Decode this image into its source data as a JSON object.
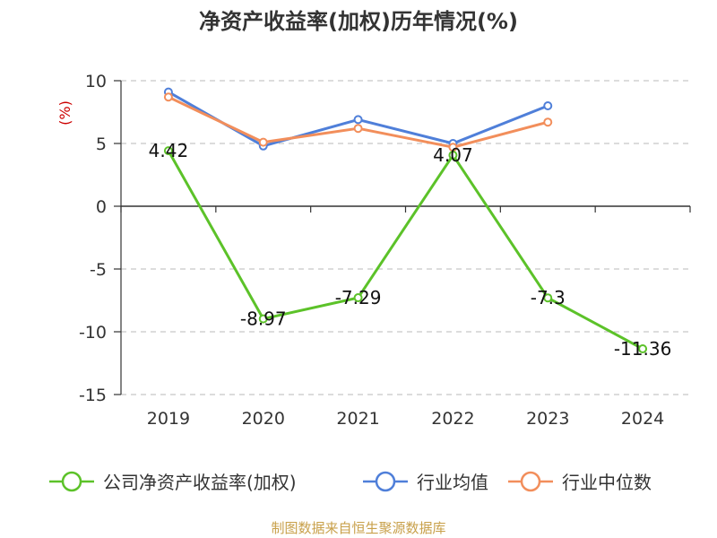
{
  "chart_data": {
    "type": "line",
    "title": "净资产收益率(加权)历年情况(%)",
    "ylabel": "(%)",
    "ylim": [
      -15,
      10
    ],
    "yticks": [
      10,
      5,
      0,
      -5,
      -10,
      -15
    ],
    "categories": [
      "2019",
      "2020",
      "2021",
      "2022",
      "2023",
      "2024"
    ],
    "grid": true,
    "legend_position": "bottom",
    "series": [
      {
        "name": "公司净资产收益率(加权)",
        "color": "#5cc229",
        "values": [
          4.42,
          -8.97,
          -7.29,
          4.07,
          -7.3,
          -11.36
        ],
        "labels": [
          "4.42",
          "-8.97",
          "-7.29",
          "4.07",
          "-7.3",
          "-11.36"
        ]
      },
      {
        "name": "行业均值",
        "color": "#4f7fd9",
        "values": [
          9.1,
          4.8,
          6.9,
          5.0,
          8.0,
          null
        ]
      },
      {
        "name": "行业中位数",
        "color": "#f28e5b",
        "values": [
          8.7,
          5.1,
          6.2,
          4.7,
          6.7,
          null
        ]
      }
    ],
    "source": "制图数据来自恒生聚源数据库"
  }
}
